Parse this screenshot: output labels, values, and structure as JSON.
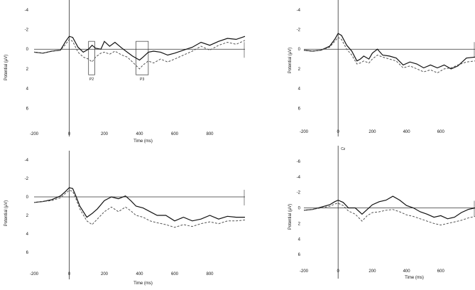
{
  "colors": {
    "axis": "#333333",
    "solid_series": "#111111",
    "dashed_series": "#555555"
  },
  "chart_data": [
    {
      "type": "line",
      "panel": "top-left",
      "xlabel": "Time (ms)",
      "ylabel": "Potential (μV)",
      "xlim": [
        -200,
        1000
      ],
      "ylim": [
        8,
        -5
      ],
      "y_inverted": true,
      "xticks": [
        "-200",
        "0",
        "200",
        "400",
        "600",
        "800"
      ],
      "yticks": [
        "-4",
        "-2",
        "0",
        "2",
        "4",
        "6"
      ],
      "grid": false,
      "annotations": [
        {
          "text": "P2",
          "x_range": [
            110,
            145
          ],
          "y_range": [
            -0.8,
            2.6
          ]
        },
        {
          "text": "P3",
          "x_range": [
            380,
            450
          ],
          "y_range": [
            -0.8,
            2.6
          ]
        }
      ],
      "series": [
        {
          "style": "solid",
          "x": [
            -200,
            -150,
            -100,
            -50,
            -20,
            0,
            20,
            50,
            80,
            110,
            130,
            150,
            180,
            200,
            230,
            260,
            300,
            330,
            360,
            400,
            420,
            450,
            480,
            520,
            560,
            600,
            650,
            700,
            750,
            800,
            850,
            900,
            950,
            1000
          ],
          "y": [
            0.3,
            0.4,
            0.2,
            0.1,
            -0.8,
            -1.3,
            -1.2,
            -0.2,
            0.3,
            0.0,
            -0.4,
            -0.1,
            0.0,
            -0.8,
            -0.3,
            -0.7,
            -0.1,
            0.3,
            0.7,
            1.1,
            0.8,
            0.3,
            0.2,
            0.3,
            0.6,
            0.4,
            0.1,
            -0.2,
            -0.7,
            -0.4,
            -0.8,
            -1.1,
            -1.0,
            -1.3
          ]
        },
        {
          "style": "dashed",
          "x": [
            -200,
            -150,
            -100,
            -50,
            -20,
            0,
            20,
            50,
            80,
            110,
            130,
            150,
            180,
            200,
            230,
            260,
            300,
            330,
            360,
            400,
            420,
            450,
            480,
            520,
            560,
            600,
            650,
            700,
            750,
            800,
            850,
            900,
            950,
            1000
          ],
          "y": [
            0.3,
            0.4,
            0.2,
            0.1,
            -0.5,
            -1.0,
            -0.8,
            0.3,
            0.8,
            1.0,
            1.3,
            0.8,
            0.4,
            0.3,
            0.5,
            0.2,
            0.6,
            0.8,
            1.3,
            2.0,
            1.6,
            1.2,
            1.4,
            1.0,
            1.3,
            1.0,
            0.6,
            0.2,
            -0.3,
            0.1,
            -0.4,
            -0.7,
            -0.5,
            -0.9
          ]
        }
      ]
    },
    {
      "type": "line",
      "panel": "top-right",
      "xlabel": "",
      "ylabel": "Potential (μV)",
      "xlim": [
        -200,
        800
      ],
      "ylim": [
        8,
        -5
      ],
      "y_inverted": true,
      "xticks": [
        "-200",
        "0",
        "200",
        "400",
        "600"
      ],
      "yticks": [
        "-4",
        "-2",
        "0",
        "2",
        "4",
        "6"
      ],
      "grid": false,
      "series": [
        {
          "style": "solid",
          "x": [
            -200,
            -150,
            -100,
            -50,
            -20,
            0,
            20,
            50,
            80,
            110,
            130,
            150,
            180,
            200,
            230,
            260,
            300,
            340,
            380,
            420,
            460,
            500,
            540,
            580,
            620,
            660,
            700,
            750,
            800
          ],
          "y": [
            0.1,
            0.2,
            0.1,
            -0.3,
            -1.0,
            -1.6,
            -1.4,
            -0.4,
            0.2,
            1.2,
            1.0,
            0.7,
            1.0,
            0.4,
            0.0,
            0.6,
            0.7,
            0.9,
            1.6,
            1.3,
            1.5,
            1.9,
            1.6,
            1.9,
            1.6,
            2.0,
            1.7,
            0.9,
            0.8
          ]
        },
        {
          "style": "dashed",
          "x": [
            -200,
            -150,
            -100,
            -50,
            -20,
            0,
            20,
            50,
            80,
            110,
            130,
            150,
            180,
            200,
            230,
            260,
            300,
            340,
            380,
            420,
            460,
            500,
            540,
            580,
            620,
            660,
            700,
            750,
            800
          ],
          "y": [
            0.1,
            0.2,
            0.1,
            -0.2,
            -0.8,
            -1.2,
            -1.0,
            0.0,
            0.6,
            1.5,
            1.4,
            1.2,
            1.4,
            1.0,
            0.6,
            0.8,
            1.0,
            1.2,
            1.9,
            1.7,
            2.0,
            2.3,
            2.1,
            2.4,
            2.0,
            1.9,
            1.6,
            1.3,
            1.2
          ]
        }
      ]
    },
    {
      "type": "line",
      "panel": "bottom-left",
      "xlabel": "Time (ms)",
      "ylabel": "Potential (μV)",
      "xlim": [
        -200,
        1000
      ],
      "ylim": [
        8,
        -5
      ],
      "y_inverted": true,
      "xticks": [
        "-200",
        "0",
        "200",
        "400",
        "600",
        "800"
      ],
      "yticks": [
        "-4",
        "-2",
        "0",
        "2",
        "4",
        "6"
      ],
      "grid": false,
      "series": [
        {
          "style": "solid",
          "x": [
            -200,
            -150,
            -100,
            -50,
            -20,
            0,
            20,
            40,
            60,
            100,
            130,
            160,
            200,
            240,
            280,
            320,
            350,
            380,
            420,
            460,
            500,
            550,
            600,
            650,
            700,
            750,
            800,
            850,
            900,
            950,
            1000
          ],
          "y": [
            0.6,
            0.5,
            0.3,
            -0.1,
            -0.6,
            -1.0,
            -0.9,
            0.0,
            1.0,
            2.2,
            1.8,
            1.3,
            0.4,
            0.0,
            0.2,
            -0.1,
            0.4,
            1.0,
            1.2,
            1.6,
            2.0,
            2.0,
            2.6,
            2.2,
            2.6,
            2.4,
            2.0,
            2.4,
            2.1,
            2.2,
            2.2
          ]
        },
        {
          "style": "dashed",
          "x": [
            -200,
            -150,
            -100,
            -50,
            -20,
            0,
            20,
            40,
            60,
            100,
            130,
            160,
            200,
            240,
            280,
            320,
            350,
            380,
            420,
            460,
            500,
            550,
            600,
            650,
            700,
            750,
            800,
            850,
            900,
            950,
            1000
          ],
          "y": [
            0.6,
            0.5,
            0.4,
            0.1,
            -0.4,
            -0.7,
            -0.6,
            0.3,
            1.3,
            2.6,
            3.0,
            2.4,
            1.6,
            1.1,
            1.6,
            1.1,
            1.5,
            2.0,
            2.2,
            2.6,
            2.8,
            3.0,
            3.3,
            3.0,
            3.2,
            2.9,
            2.7,
            2.9,
            2.6,
            2.6,
            2.5
          ]
        }
      ]
    },
    {
      "type": "line",
      "panel": "bottom-right",
      "xlabel": "Time (ms)",
      "ylabel": "Potential (μV)",
      "electrode_label": "Cz",
      "xlim": [
        -200,
        800
      ],
      "ylim": [
        8,
        -8
      ],
      "y_inverted": true,
      "xticks": [
        "-200",
        "0",
        "200",
        "400",
        "600"
      ],
      "yticks": [
        "-6",
        "-4",
        "-2",
        "0",
        "2",
        "4",
        "6"
      ],
      "grid": false,
      "series": [
        {
          "style": "solid",
          "x": [
            -200,
            -150,
            -100,
            -50,
            -20,
            0,
            30,
            60,
            100,
            140,
            170,
            200,
            240,
            280,
            320,
            360,
            400,
            440,
            480,
            520,
            560,
            600,
            640,
            680,
            720,
            760,
            800
          ],
          "y": [
            0.3,
            0.2,
            -0.1,
            -0.4,
            -0.8,
            -1.0,
            -0.7,
            0.0,
            0.0,
            0.8,
            0.2,
            -0.4,
            -0.8,
            -1.0,
            -1.5,
            -1.0,
            -0.3,
            0.0,
            0.5,
            0.8,
            1.2,
            1.0,
            1.4,
            1.2,
            0.6,
            0.2,
            0.0
          ]
        },
        {
          "style": "dashed",
          "x": [
            -200,
            -150,
            -100,
            -50,
            -20,
            0,
            30,
            60,
            100,
            140,
            170,
            200,
            240,
            280,
            320,
            360,
            400,
            440,
            480,
            520,
            560,
            600,
            640,
            680,
            720,
            760,
            800
          ],
          "y": [
            0.3,
            0.2,
            0.0,
            -0.2,
            -0.5,
            -0.6,
            -0.3,
            0.4,
            0.8,
            1.7,
            1.0,
            0.6,
            0.5,
            0.3,
            0.2,
            0.5,
            0.9,
            1.1,
            1.4,
            1.7,
            2.0,
            2.2,
            2.0,
            1.8,
            1.6,
            1.3,
            1.1
          ]
        }
      ]
    }
  ]
}
